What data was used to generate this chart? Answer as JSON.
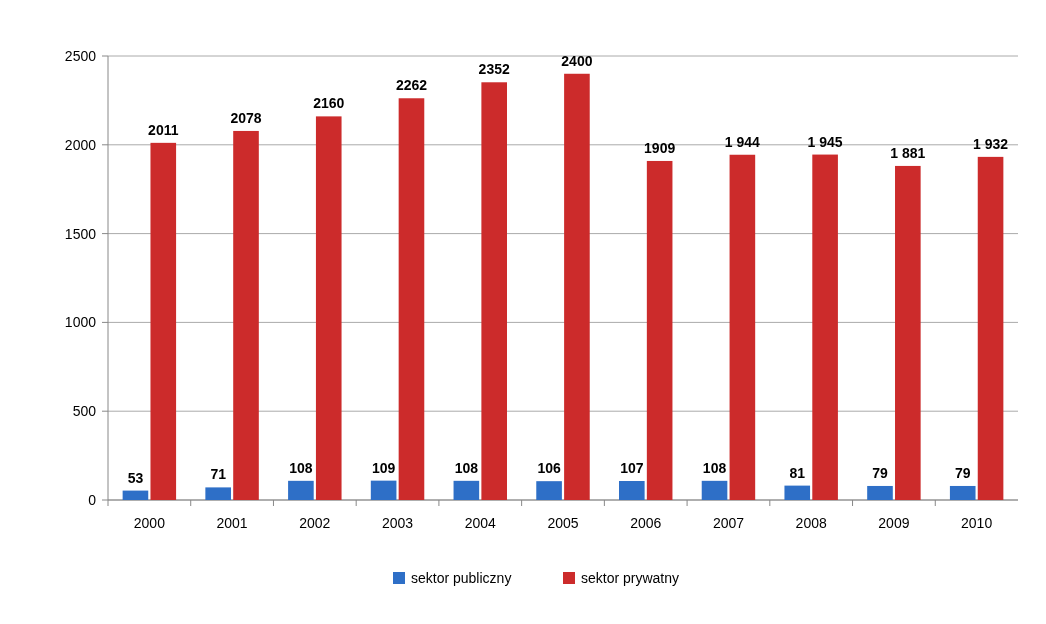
{
  "chart_data": {
    "type": "bar",
    "categories": [
      "2000",
      "2001",
      "2002",
      "2003",
      "2004",
      "2005",
      "2006",
      "2007",
      "2008",
      "2009",
      "2010"
    ],
    "series": [
      {
        "name": "sektor publiczny",
        "color": "#2e6fc7",
        "values": [
          53,
          71,
          108,
          109,
          108,
          106,
          107,
          108,
          81,
          79,
          79
        ]
      },
      {
        "name": "sektor prywatny",
        "color": "#cc2b2b",
        "values": [
          2011,
          2078,
          2160,
          2262,
          2352,
          2400,
          1909,
          1944,
          1945,
          1881,
          1932
        ],
        "value_labels": [
          "2011",
          "2078",
          "2160",
          "2262",
          "2352",
          "2400",
          "1909",
          "1 944",
          "1 945",
          "1 881",
          "1 932"
        ]
      }
    ],
    "ylim": [
      0,
      2500
    ],
    "yticks": [
      0,
      500,
      1000,
      1500,
      2000,
      2500
    ],
    "grid": "y",
    "data_labels": true,
    "legend": "bottom"
  }
}
